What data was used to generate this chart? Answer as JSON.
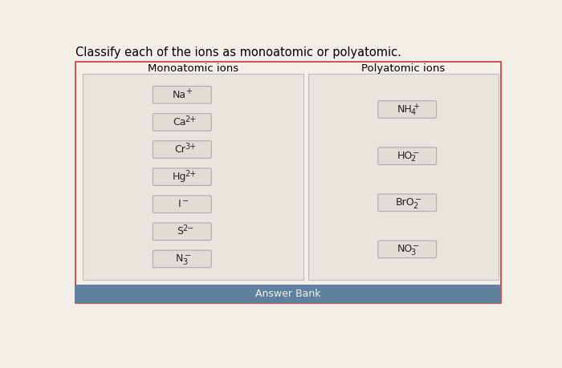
{
  "title": "Classify each of the ions as monoatomic or polyatomic.",
  "monoatomic_label": "Monoatomic ions",
  "polyatomic_label": "Polyatomic ions",
  "monoatomic_ions": [
    {
      "text": "Na",
      "sup": "+",
      "sub": ""
    },
    {
      "text": "Ca",
      "sup": "2+",
      "sub": ""
    },
    {
      "text": "Cr",
      "sup": "3+",
      "sub": ""
    },
    {
      "text": "Hg",
      "sup": "2+",
      "sub": ""
    },
    {
      "text": "I",
      "sup": "−",
      "sub": ""
    },
    {
      "text": "S",
      "sup": "2−",
      "sub": ""
    },
    {
      "text": "N",
      "sup": "−",
      "sub": "3"
    }
  ],
  "polyatomic_ions": [
    {
      "text": "NH",
      "sup": "+",
      "sub": "4"
    },
    {
      "text": "HO",
      "sup": "−",
      "sub": "2"
    },
    {
      "text": "BrO",
      "sup": "−",
      "sub": "2"
    },
    {
      "text": "NO",
      "sup": "−",
      "sub": "3"
    }
  ],
  "answer_bank_label": "Answer Bank",
  "page_bg": "#f2efe8",
  "outer_rect_bg": "#f2efe8",
  "outer_rect_edge": "#cc3333",
  "panel_bg": "#e8e5de",
  "panel_edge": "#bbbbbb",
  "item_box_bg": "#e0ddd6",
  "item_box_edge": "#aaaaaa",
  "bar_color": "#6080a0",
  "bar_text_color": "#f0f0f0",
  "title_fontsize": 10.5,
  "label_fontsize": 9.5,
  "item_fontsize": 9
}
